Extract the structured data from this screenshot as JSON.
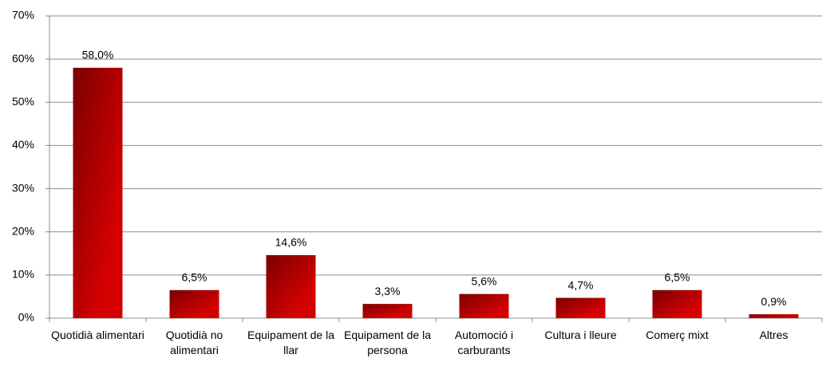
{
  "chart_data": {
    "type": "bar",
    "categories": [
      "Quotidià alimentari",
      "Quotidià no alimentari",
      "Equipament de la llar",
      "Equipament de la persona",
      "Automoció i carburants",
      "Cultura i lleure",
      "Comerç mixt",
      "Altres"
    ],
    "values": [
      58.0,
      6.5,
      14.6,
      3.3,
      5.6,
      4.7,
      6.5,
      0.9
    ],
    "value_labels": [
      "58,0%",
      "6,5%",
      "14,6%",
      "3,3%",
      "5,6%",
      "4,7%",
      "6,5%",
      "0,9%"
    ],
    "color": "#d40000",
    "ylim": [
      0,
      70
    ],
    "yticks": [
      {
        "value": 0,
        "label": "0%"
      },
      {
        "value": 10,
        "label": "10%"
      },
      {
        "value": 20,
        "label": "20%"
      },
      {
        "value": 30,
        "label": "30%"
      },
      {
        "value": 40,
        "label": "40%"
      },
      {
        "value": 50,
        "label": "50%"
      },
      {
        "value": 60,
        "label": "60%"
      },
      {
        "value": 70,
        "label": "70%"
      }
    ],
    "grid": true
  }
}
